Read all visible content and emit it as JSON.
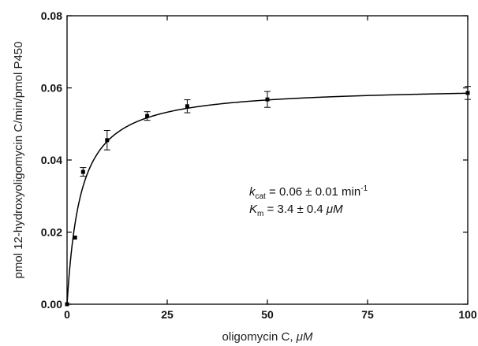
{
  "chart_data": {
    "type": "scatter",
    "xlabel_text": "oligomycin C, ",
    "xlabel_unit": "μM",
    "ylabel": "pmol 12-hydroxyoligomycin C/min/pmol P450",
    "xlim": [
      0,
      100
    ],
    "ylim": [
      0,
      0.08
    ],
    "xticks": [
      "0",
      "25",
      "50",
      "75",
      "100"
    ],
    "yticks": [
      "0.00",
      "0.02",
      "0.04",
      "0.06",
      "0.08"
    ],
    "grid": false,
    "points": [
      {
        "x": 0,
        "y": 0.0,
        "err": 0.0
      },
      {
        "x": 2,
        "y": 0.0185,
        "err": 0.0
      },
      {
        "x": 4,
        "y": 0.0367,
        "err": 0.0012
      },
      {
        "x": 10,
        "y": 0.0455,
        "err": 0.0027
      },
      {
        "x": 20,
        "y": 0.0522,
        "err": 0.0012
      },
      {
        "x": 30,
        "y": 0.0549,
        "err": 0.0018
      },
      {
        "x": 50,
        "y": 0.0568,
        "err": 0.0022
      },
      {
        "x": 100,
        "y": 0.0586,
        "err": 0.0018
      }
    ],
    "fit": {
      "model": "Michaelis-Menten",
      "vmax": 0.0605,
      "km": 3.4
    },
    "annotations": {
      "kcat_symbol": "k",
      "kcat_sub": "cat",
      "kcat_text": " = 0.06 ± 0.01 min",
      "kcat_sup": "-1",
      "km_symbol": "K",
      "km_sub": "m",
      "km_text": "  = 3.4 ± 0.4 ",
      "km_unit": "μM"
    }
  }
}
